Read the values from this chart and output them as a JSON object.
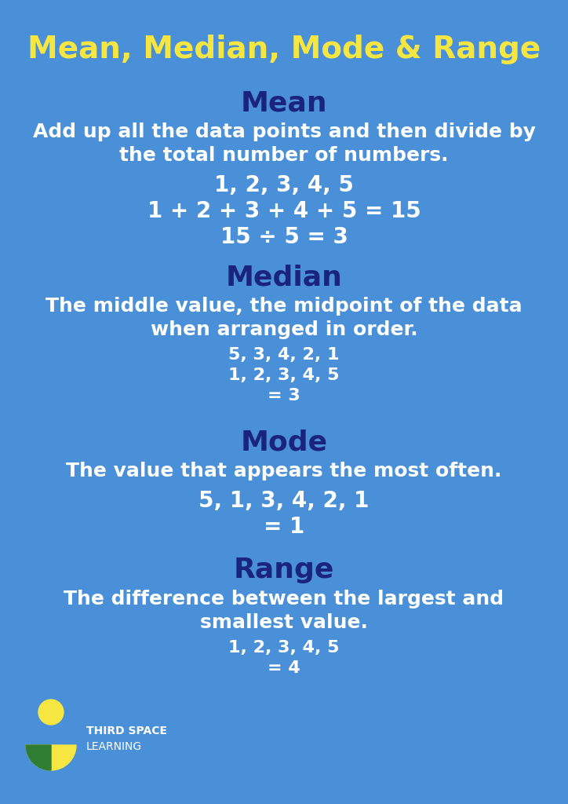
{
  "background_color": "#4A90D9",
  "title": "Mean, Median, Mode & Range",
  "title_color": "#F5E642",
  "title_fontsize": 28,
  "section_header_color": "#1a237e",
  "section_header_fontsize": 26,
  "body_white_color": "#FFFFFF",
  "body_white_fontsize": 18,
  "example_fontsize": 20,
  "median_example_fontsize": 16,
  "range_example_fontsize": 16,
  "sections": [
    {
      "header": "Mean",
      "definition_lines": [
        "Add up all the data points and then divide by",
        "the total number of numbers."
      ],
      "examples": [
        "1, 2, 3, 4, 5",
        "1 + 2 + 3 + 4 + 5 = 15",
        "15 ÷ 5 = 3"
      ]
    },
    {
      "header": "Median",
      "definition_lines": [
        "The middle value, the midpoint of the data",
        "when arranged in order."
      ],
      "examples": [
        "5, 3, 4, 2, 1",
        "1, 2, 3, 4, 5",
        "= 3"
      ]
    },
    {
      "header": "Mode",
      "definition_lines": [
        "The value that appears the most often."
      ],
      "examples": [
        "5, 1, 3, 4, 2, 1",
        "= 1"
      ]
    },
    {
      "header": "Range",
      "definition_lines": [
        "The difference between the largest and",
        "smallest value."
      ],
      "examples": [
        "1, 2, 3, 4, 5",
        "= 4"
      ]
    }
  ],
  "logo_text_line1": "THIRD SPACE",
  "logo_text_line2": "LEARNING",
  "logo_yellow": "#F5E642",
  "logo_green": "#2e7d32"
}
